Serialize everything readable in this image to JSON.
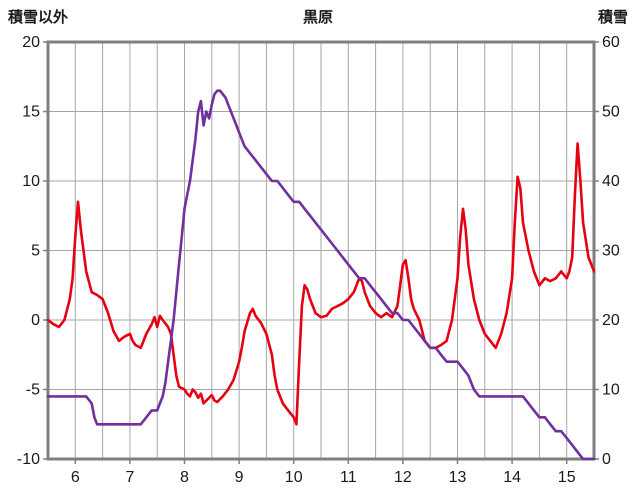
{
  "chart_data": {
    "type": "line",
    "title": "黒原",
    "left_axis_title": "積雪以外",
    "right_axis_title": "積雪",
    "x_range": [
      5.5,
      15.5
    ],
    "left_range": [
      -10,
      20
    ],
    "right_range": [
      0,
      60
    ],
    "x_grid_step": 0.5,
    "left_ticks": [
      20,
      15,
      10,
      5,
      0,
      -5,
      -10
    ],
    "right_ticks": [
      60,
      50,
      40,
      30,
      20,
      10,
      0
    ],
    "x_ticks": [
      6,
      7,
      8,
      9,
      10,
      11,
      12,
      13,
      14,
      15
    ],
    "grid_color": "#a6a6a6",
    "axis_color": "#7f7f7f",
    "tick_label_color": "#1a1a1a",
    "legend": "off",
    "grid": "on",
    "series": [
      {
        "id": "left-axis-series",
        "axis": "left",
        "color": "#e60012",
        "points": [
          [
            5.5,
            0
          ],
          [
            5.6,
            -0.3
          ],
          [
            5.7,
            -0.5
          ],
          [
            5.8,
            0
          ],
          [
            5.9,
            1.5
          ],
          [
            5.95,
            3
          ],
          [
            6.0,
            6
          ],
          [
            6.05,
            8.5
          ],
          [
            6.1,
            6.5
          ],
          [
            6.15,
            5
          ],
          [
            6.2,
            3.5
          ],
          [
            6.3,
            2
          ],
          [
            6.4,
            1.8
          ],
          [
            6.5,
            1.5
          ],
          [
            6.6,
            0.5
          ],
          [
            6.7,
            -0.8
          ],
          [
            6.8,
            -1.5
          ],
          [
            6.9,
            -1.2
          ],
          [
            7.0,
            -1
          ],
          [
            7.05,
            -1.5
          ],
          [
            7.1,
            -1.8
          ],
          [
            7.2,
            -2
          ],
          [
            7.3,
            -1
          ],
          [
            7.4,
            -0.3
          ],
          [
            7.45,
            0.2
          ],
          [
            7.5,
            -0.5
          ],
          [
            7.55,
            0.3
          ],
          [
            7.6,
            0
          ],
          [
            7.7,
            -0.5
          ],
          [
            7.75,
            -1
          ],
          [
            7.8,
            -2.5
          ],
          [
            7.85,
            -4
          ],
          [
            7.9,
            -4.8
          ],
          [
            8.0,
            -5
          ],
          [
            8.05,
            -5.3
          ],
          [
            8.1,
            -5.5
          ],
          [
            8.15,
            -5
          ],
          [
            8.2,
            -5.2
          ],
          [
            8.25,
            -5.6
          ],
          [
            8.3,
            -5.3
          ],
          [
            8.35,
            -6
          ],
          [
            8.4,
            -5.8
          ],
          [
            8.5,
            -5.4
          ],
          [
            8.55,
            -5.8
          ],
          [
            8.6,
            -5.9
          ],
          [
            8.7,
            -5.5
          ],
          [
            8.8,
            -5
          ],
          [
            8.9,
            -4.3
          ],
          [
            9.0,
            -3
          ],
          [
            9.05,
            -2
          ],
          [
            9.1,
            -0.8
          ],
          [
            9.2,
            0.5
          ],
          [
            9.25,
            0.8
          ],
          [
            9.3,
            0.3
          ],
          [
            9.4,
            -0.2
          ],
          [
            9.5,
            -1
          ],
          [
            9.6,
            -2.5
          ],
          [
            9.65,
            -4
          ],
          [
            9.7,
            -5
          ],
          [
            9.8,
            -6
          ],
          [
            9.9,
            -6.5
          ],
          [
            10.0,
            -7
          ],
          [
            10.05,
            -7.5
          ],
          [
            10.1,
            -3
          ],
          [
            10.15,
            1
          ],
          [
            10.2,
            2.5
          ],
          [
            10.25,
            2.2
          ],
          [
            10.3,
            1.5
          ],
          [
            10.4,
            0.5
          ],
          [
            10.5,
            0.2
          ],
          [
            10.6,
            0.3
          ],
          [
            10.7,
            0.8
          ],
          [
            10.8,
            1
          ],
          [
            10.9,
            1.2
          ],
          [
            11.0,
            1.5
          ],
          [
            11.1,
            2
          ],
          [
            11.15,
            2.5
          ],
          [
            11.2,
            3
          ],
          [
            11.25,
            2.8
          ],
          [
            11.3,
            2
          ],
          [
            11.4,
            1
          ],
          [
            11.5,
            0.5
          ],
          [
            11.6,
            0.2
          ],
          [
            11.7,
            0.5
          ],
          [
            11.8,
            0.2
          ],
          [
            11.9,
            1
          ],
          [
            11.95,
            2.5
          ],
          [
            12.0,
            4
          ],
          [
            12.05,
            4.3
          ],
          [
            12.1,
            3
          ],
          [
            12.15,
            1.5
          ],
          [
            12.2,
            0.8
          ],
          [
            12.3,
            0
          ],
          [
            12.4,
            -1.5
          ],
          [
            12.5,
            -2
          ],
          [
            12.6,
            -2
          ],
          [
            12.7,
            -1.8
          ],
          [
            12.8,
            -1.5
          ],
          [
            12.9,
            0
          ],
          [
            13.0,
            3
          ],
          [
            13.05,
            6
          ],
          [
            13.1,
            8
          ],
          [
            13.15,
            6.5
          ],
          [
            13.2,
            4
          ],
          [
            13.3,
            1.5
          ],
          [
            13.4,
            0
          ],
          [
            13.5,
            -1
          ],
          [
            13.6,
            -1.5
          ],
          [
            13.7,
            -2
          ],
          [
            13.8,
            -1
          ],
          [
            13.9,
            0.5
          ],
          [
            14.0,
            3
          ],
          [
            14.05,
            7
          ],
          [
            14.1,
            10.3
          ],
          [
            14.15,
            9.5
          ],
          [
            14.2,
            7
          ],
          [
            14.3,
            5
          ],
          [
            14.4,
            3.5
          ],
          [
            14.5,
            2.5
          ],
          [
            14.6,
            3
          ],
          [
            14.7,
            2.8
          ],
          [
            14.8,
            3
          ],
          [
            14.9,
            3.5
          ],
          [
            15.0,
            3
          ],
          [
            15.05,
            3.5
          ],
          [
            15.1,
            4.5
          ],
          [
            15.15,
            9
          ],
          [
            15.2,
            12.7
          ],
          [
            15.25,
            10
          ],
          [
            15.3,
            7
          ],
          [
            15.4,
            4.5
          ],
          [
            15.5,
            3.5
          ]
        ]
      },
      {
        "id": "right-axis-series",
        "axis": "right",
        "color": "#7030a0",
        "points": [
          [
            5.5,
            9
          ],
          [
            6.2,
            9
          ],
          [
            6.3,
            8
          ],
          [
            6.35,
            6
          ],
          [
            6.4,
            5
          ],
          [
            7.2,
            5
          ],
          [
            7.3,
            6
          ],
          [
            7.4,
            7
          ],
          [
            7.5,
            7
          ],
          [
            7.55,
            8
          ],
          [
            7.6,
            9
          ],
          [
            7.65,
            11
          ],
          [
            7.7,
            14
          ],
          [
            7.75,
            17
          ],
          [
            7.8,
            20
          ],
          [
            7.85,
            24
          ],
          [
            7.9,
            28
          ],
          [
            7.95,
            32
          ],
          [
            8.0,
            36
          ],
          [
            8.05,
            38
          ],
          [
            8.1,
            40
          ],
          [
            8.15,
            43
          ],
          [
            8.2,
            46
          ],
          [
            8.25,
            50
          ],
          [
            8.3,
            51.5
          ],
          [
            8.35,
            48
          ],
          [
            8.4,
            50
          ],
          [
            8.45,
            49
          ],
          [
            8.5,
            51
          ],
          [
            8.55,
            52.5
          ],
          [
            8.6,
            53
          ],
          [
            8.65,
            53
          ],
          [
            8.7,
            52.5
          ],
          [
            8.75,
            52
          ],
          [
            8.8,
            51
          ],
          [
            8.85,
            50
          ],
          [
            8.9,
            49
          ],
          [
            8.95,
            48
          ],
          [
            9.0,
            47
          ],
          [
            9.05,
            46
          ],
          [
            9.1,
            45
          ],
          [
            9.2,
            44
          ],
          [
            9.3,
            43
          ],
          [
            9.4,
            42
          ],
          [
            9.5,
            41
          ],
          [
            9.6,
            40
          ],
          [
            9.7,
            40
          ],
          [
            9.8,
            39
          ],
          [
            9.9,
            38
          ],
          [
            10.0,
            37
          ],
          [
            10.1,
            37
          ],
          [
            10.2,
            36
          ],
          [
            10.3,
            35
          ],
          [
            10.4,
            34
          ],
          [
            10.5,
            33
          ],
          [
            10.6,
            32
          ],
          [
            10.7,
            31
          ],
          [
            10.8,
            30
          ],
          [
            10.9,
            29
          ],
          [
            11.0,
            28
          ],
          [
            11.1,
            27
          ],
          [
            11.2,
            26
          ],
          [
            11.3,
            26
          ],
          [
            11.4,
            25
          ],
          [
            11.5,
            24
          ],
          [
            11.6,
            23
          ],
          [
            11.7,
            22
          ],
          [
            11.8,
            21
          ],
          [
            11.9,
            21
          ],
          [
            12.0,
            20
          ],
          [
            12.1,
            20
          ],
          [
            12.2,
            19
          ],
          [
            12.3,
            18
          ],
          [
            12.4,
            17
          ],
          [
            12.5,
            16
          ],
          [
            12.6,
            16
          ],
          [
            12.7,
            15
          ],
          [
            12.8,
            14
          ],
          [
            12.9,
            14
          ],
          [
            13.0,
            14
          ],
          [
            13.1,
            13
          ],
          [
            13.2,
            12
          ],
          [
            13.3,
            10
          ],
          [
            13.4,
            9
          ],
          [
            13.5,
            9
          ],
          [
            14.2,
            9
          ],
          [
            14.3,
            8
          ],
          [
            14.4,
            7
          ],
          [
            14.5,
            6
          ],
          [
            14.6,
            6
          ],
          [
            14.7,
            5
          ],
          [
            14.8,
            4
          ],
          [
            14.9,
            4
          ],
          [
            15.0,
            3
          ],
          [
            15.1,
            2
          ],
          [
            15.2,
            1
          ],
          [
            15.3,
            0
          ],
          [
            15.5,
            0
          ]
        ]
      }
    ]
  }
}
